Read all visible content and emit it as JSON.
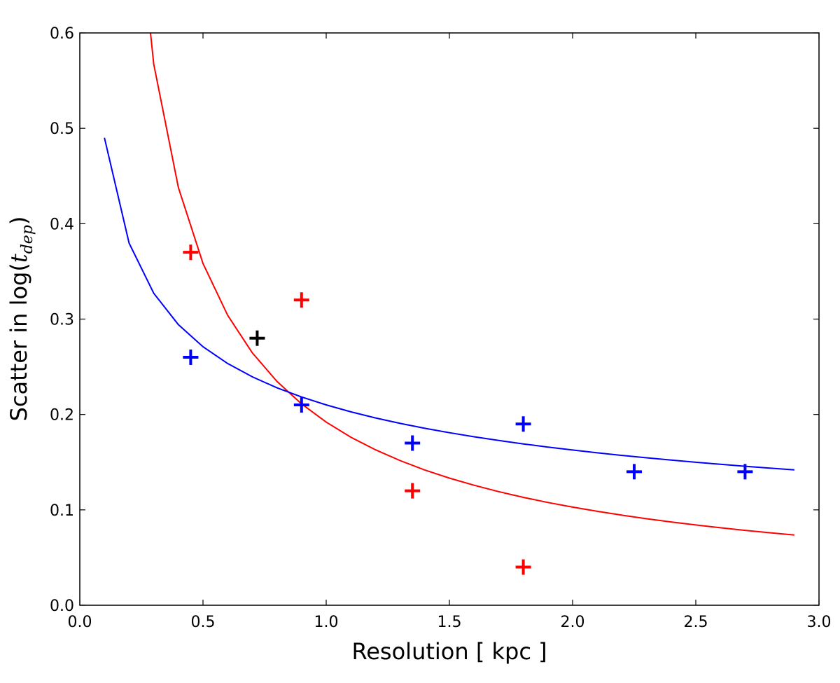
{
  "chart_data": {
    "type": "scatter",
    "title": "",
    "xlabel": "Resolution [ kpc ]",
    "ylabel_prefix": "Scatter in log(",
    "ylabel_var": "t",
    "ylabel_sub": "dep",
    "ylabel_suffix": ")",
    "xlim": [
      0.0,
      3.0
    ],
    "ylim": [
      0.0,
      0.6
    ],
    "xticks": [
      "0.0",
      "0.5",
      "1.0",
      "1.5",
      "2.0",
      "2.5",
      "3.0"
    ],
    "yticks": [
      "0.0",
      "0.1",
      "0.2",
      "0.3",
      "0.4",
      "0.5",
      "0.6"
    ],
    "grid": false,
    "series": [
      {
        "name": "red-points",
        "color": "#ff0000",
        "marker": "+",
        "x": [
          0.45,
          0.9,
          1.35,
          1.8
        ],
        "y": [
          0.37,
          0.32,
          0.12,
          0.04
        ]
      },
      {
        "name": "blue-points",
        "color": "#0000ff",
        "marker": "+",
        "x": [
          0.45,
          0.9,
          1.35,
          1.8,
          2.25,
          2.7
        ],
        "y": [
          0.26,
          0.21,
          0.17,
          0.19,
          0.14,
          0.14
        ]
      },
      {
        "name": "black-point",
        "color": "#000000",
        "marker": "+",
        "x": [
          0.72
        ],
        "y": [
          0.28
        ]
      }
    ],
    "fits": [
      {
        "name": "red-fit",
        "color": "#ff0000",
        "form": "a*x^b",
        "a": 0.192,
        "b": -0.9,
        "x_start": 0.1,
        "x_end": 2.9,
        "step": 0.1
      },
      {
        "name": "blue-fit",
        "color": "#0000ff",
        "form": "a*x^b",
        "a": 0.21,
        "b": -0.368,
        "x_start": 0.1,
        "x_end": 2.9,
        "step": 0.1
      }
    ]
  }
}
